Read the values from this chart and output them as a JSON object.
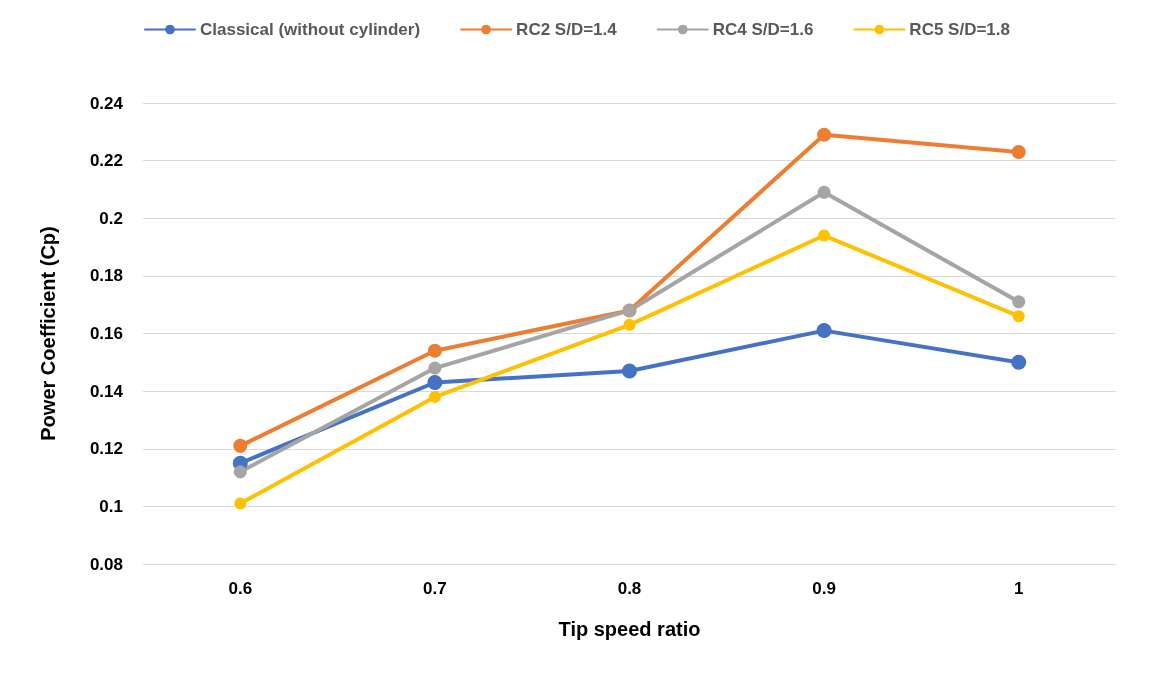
{
  "chart_data": {
    "type": "line",
    "xlabel": "Tip speed ratio",
    "ylabel": "Power Coefficient (Cp)",
    "categories": [
      "0.6",
      "0.7",
      "0.8",
      "0.9",
      "1"
    ],
    "series": [
      {
        "name": "Classical (without cylinder)",
        "color": "#4472c4",
        "values": [
          0.115,
          0.143,
          0.147,
          0.161,
          0.15
        ]
      },
      {
        "name": "RC2 S/D=1.4",
        "color": "#ed7d31",
        "values": [
          0.121,
          0.154,
          0.168,
          0.229,
          0.223
        ]
      },
      {
        "name": "RC4 S/D=1.6",
        "color": "#a5a5a5",
        "values": [
          0.112,
          0.148,
          0.168,
          0.209,
          0.171
        ]
      },
      {
        "name": "RC5 S/D=1.8",
        "color": "#ffc000",
        "values": [
          0.101,
          0.138,
          0.163,
          0.194,
          0.166
        ]
      }
    ],
    "ylim": [
      0.08,
      0.24
    ],
    "yticks": [
      0.08,
      0.1,
      0.12,
      0.14,
      0.16,
      0.18,
      0.2,
      0.22,
      0.24
    ],
    "grid": "y",
    "legend": "top",
    "marker": "circle",
    "line_style": "solid"
  }
}
